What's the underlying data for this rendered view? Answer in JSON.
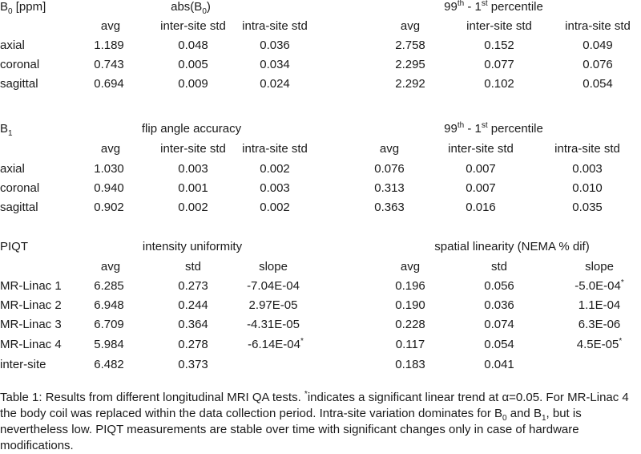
{
  "b0": {
    "label_main": "B",
    "label_sub": "0",
    "label_unit": " [ppm]",
    "left_title_main": "abs(B",
    "left_title_sub": "0",
    "left_title_end": ")",
    "right_title_a": "99",
    "right_title_sup_a": "th",
    "right_title_b": " - 1",
    "right_title_sup_b": "st",
    "right_title_c": " percentile",
    "headers_left": [
      "avg",
      "inter-site std",
      "intra-site std"
    ],
    "headers_right": [
      "avg",
      "inter-site std",
      "intra-site std"
    ],
    "rows": [
      {
        "label": "axial",
        "left": [
          "1.189",
          "0.048",
          "0.036"
        ],
        "right": [
          "2.758",
          "0.152",
          "0.049"
        ]
      },
      {
        "label": "coronal",
        "left": [
          "0.743",
          "0.005",
          "0.034"
        ],
        "right": [
          "2.295",
          "0.077",
          "0.076"
        ]
      },
      {
        "label": "sagittal",
        "left": [
          "0.694",
          "0.009",
          "0.024"
        ],
        "right": [
          "2.292",
          "0.102",
          "0.054"
        ]
      }
    ]
  },
  "b1": {
    "label_main": "B",
    "label_sub": "1",
    "left_title": "flip angle accuracy",
    "right_title_a": "99",
    "right_title_sup_a": "th",
    "right_title_b": " - 1",
    "right_title_sup_b": "st",
    "right_title_c": " percentile",
    "headers_left": [
      "avg",
      "inter-site std",
      "intra-site std"
    ],
    "headers_right": [
      "avg",
      "inter-site std",
      "intra-site std"
    ],
    "rows": [
      {
        "label": "axial",
        "left": [
          "1.030",
          "0.003",
          "0.002"
        ],
        "right": [
          "0.076",
          "0.007",
          "0.003"
        ]
      },
      {
        "label": "coronal",
        "left": [
          "0.940",
          "0.001",
          "0.003"
        ],
        "right": [
          "0.313",
          "0.007",
          "0.010"
        ]
      },
      {
        "label": "sagittal",
        "left": [
          "0.902",
          "0.002",
          "0.002"
        ],
        "right": [
          "0.363",
          "0.016",
          "0.035"
        ]
      }
    ]
  },
  "piqt": {
    "label": "PIQT",
    "left_title": "intensity uniformity",
    "right_title": "spatial linearity (NEMA % dif)",
    "headers_left": [
      "avg",
      "std",
      "slope"
    ],
    "headers_right": [
      "avg",
      "std",
      "slope"
    ],
    "rows": [
      {
        "label": "MR-Linac 1",
        "left": [
          "6.285",
          "0.273",
          "-7.04E-04"
        ],
        "left_sup": "",
        "right": [
          "0.196",
          "0.056",
          "-5.0E-04"
        ],
        "right_sup": "*"
      },
      {
        "label": "MR-Linac 2",
        "left": [
          "6.948",
          "0.244",
          "2.97E-05"
        ],
        "left_sup": "",
        "right": [
          "0.190",
          "0.036",
          "1.1E-04"
        ],
        "right_sup": ""
      },
      {
        "label": "MR-Linac 3",
        "left": [
          "6.709",
          "0.364",
          "-4.31E-05"
        ],
        "left_sup": "",
        "right": [
          "0.228",
          "0.074",
          "6.3E-06"
        ],
        "right_sup": ""
      },
      {
        "label": "MR-Linac 4",
        "left": [
          "5.984",
          "0.278",
          "-6.14E-04"
        ],
        "left_sup": "*",
        "right": [
          "0.117",
          "0.054",
          "4.5E-05"
        ],
        "right_sup": "*"
      },
      {
        "label": "inter-site",
        "left": [
          "6.482",
          "0.373",
          ""
        ],
        "left_sup": "",
        "right": [
          "0.183",
          "0.041",
          ""
        ],
        "right_sup": ""
      }
    ]
  },
  "caption": {
    "part1": "Table 1: Results from different longitudinal MRI QA tests. ",
    "star": "*",
    "part2": "indicates a significant linear trend at α=0.05. For MR-Linac 4 the body coil was replaced within the data collection period. Intra-site variation dominates for B",
    "sub0": "0",
    "part3": " and B",
    "sub1": "1",
    "part4": ", but is nevertheless low. PIQT measurements are stable over time with significant changes only in case of hardware modifications."
  }
}
